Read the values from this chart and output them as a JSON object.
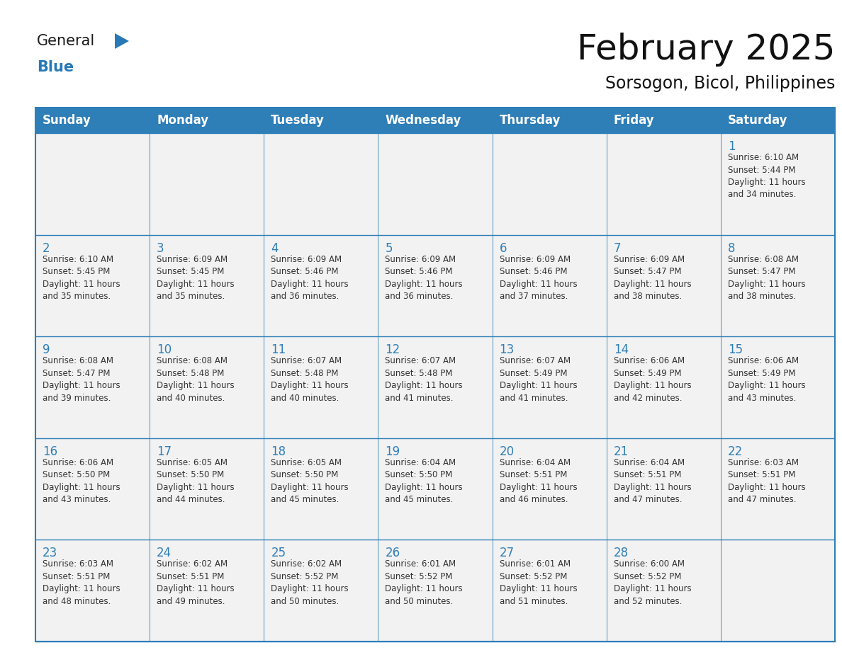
{
  "title": "February 2025",
  "subtitle": "Sorsogon, Bicol, Philippines",
  "header_bg": "#2E7EB8",
  "header_text_color": "#FFFFFF",
  "cell_bg": "#F2F2F2",
  "cell_bg_white": "#FFFFFF",
  "cell_border_color": "#2E7EB8",
  "day_number_color": "#2E7EB8",
  "cell_text_color": "#333333",
  "days_of_week": [
    "Sunday",
    "Monday",
    "Tuesday",
    "Wednesday",
    "Thursday",
    "Friday",
    "Saturday"
  ],
  "weeks": [
    [
      {
        "day": null,
        "info": null
      },
      {
        "day": null,
        "info": null
      },
      {
        "day": null,
        "info": null
      },
      {
        "day": null,
        "info": null
      },
      {
        "day": null,
        "info": null
      },
      {
        "day": null,
        "info": null
      },
      {
        "day": 1,
        "info": "Sunrise: 6:10 AM\nSunset: 5:44 PM\nDaylight: 11 hours\nand 34 minutes."
      }
    ],
    [
      {
        "day": 2,
        "info": "Sunrise: 6:10 AM\nSunset: 5:45 PM\nDaylight: 11 hours\nand 35 minutes."
      },
      {
        "day": 3,
        "info": "Sunrise: 6:09 AM\nSunset: 5:45 PM\nDaylight: 11 hours\nand 35 minutes."
      },
      {
        "day": 4,
        "info": "Sunrise: 6:09 AM\nSunset: 5:46 PM\nDaylight: 11 hours\nand 36 minutes."
      },
      {
        "day": 5,
        "info": "Sunrise: 6:09 AM\nSunset: 5:46 PM\nDaylight: 11 hours\nand 36 minutes."
      },
      {
        "day": 6,
        "info": "Sunrise: 6:09 AM\nSunset: 5:46 PM\nDaylight: 11 hours\nand 37 minutes."
      },
      {
        "day": 7,
        "info": "Sunrise: 6:09 AM\nSunset: 5:47 PM\nDaylight: 11 hours\nand 38 minutes."
      },
      {
        "day": 8,
        "info": "Sunrise: 6:08 AM\nSunset: 5:47 PM\nDaylight: 11 hours\nand 38 minutes."
      }
    ],
    [
      {
        "day": 9,
        "info": "Sunrise: 6:08 AM\nSunset: 5:47 PM\nDaylight: 11 hours\nand 39 minutes."
      },
      {
        "day": 10,
        "info": "Sunrise: 6:08 AM\nSunset: 5:48 PM\nDaylight: 11 hours\nand 40 minutes."
      },
      {
        "day": 11,
        "info": "Sunrise: 6:07 AM\nSunset: 5:48 PM\nDaylight: 11 hours\nand 40 minutes."
      },
      {
        "day": 12,
        "info": "Sunrise: 6:07 AM\nSunset: 5:48 PM\nDaylight: 11 hours\nand 41 minutes."
      },
      {
        "day": 13,
        "info": "Sunrise: 6:07 AM\nSunset: 5:49 PM\nDaylight: 11 hours\nand 41 minutes."
      },
      {
        "day": 14,
        "info": "Sunrise: 6:06 AM\nSunset: 5:49 PM\nDaylight: 11 hours\nand 42 minutes."
      },
      {
        "day": 15,
        "info": "Sunrise: 6:06 AM\nSunset: 5:49 PM\nDaylight: 11 hours\nand 43 minutes."
      }
    ],
    [
      {
        "day": 16,
        "info": "Sunrise: 6:06 AM\nSunset: 5:50 PM\nDaylight: 11 hours\nand 43 minutes."
      },
      {
        "day": 17,
        "info": "Sunrise: 6:05 AM\nSunset: 5:50 PM\nDaylight: 11 hours\nand 44 minutes."
      },
      {
        "day": 18,
        "info": "Sunrise: 6:05 AM\nSunset: 5:50 PM\nDaylight: 11 hours\nand 45 minutes."
      },
      {
        "day": 19,
        "info": "Sunrise: 6:04 AM\nSunset: 5:50 PM\nDaylight: 11 hours\nand 45 minutes."
      },
      {
        "day": 20,
        "info": "Sunrise: 6:04 AM\nSunset: 5:51 PM\nDaylight: 11 hours\nand 46 minutes."
      },
      {
        "day": 21,
        "info": "Sunrise: 6:04 AM\nSunset: 5:51 PM\nDaylight: 11 hours\nand 47 minutes."
      },
      {
        "day": 22,
        "info": "Sunrise: 6:03 AM\nSunset: 5:51 PM\nDaylight: 11 hours\nand 47 minutes."
      }
    ],
    [
      {
        "day": 23,
        "info": "Sunrise: 6:03 AM\nSunset: 5:51 PM\nDaylight: 11 hours\nand 48 minutes."
      },
      {
        "day": 24,
        "info": "Sunrise: 6:02 AM\nSunset: 5:51 PM\nDaylight: 11 hours\nand 49 minutes."
      },
      {
        "day": 25,
        "info": "Sunrise: 6:02 AM\nSunset: 5:52 PM\nDaylight: 11 hours\nand 50 minutes."
      },
      {
        "day": 26,
        "info": "Sunrise: 6:01 AM\nSunset: 5:52 PM\nDaylight: 11 hours\nand 50 minutes."
      },
      {
        "day": 27,
        "info": "Sunrise: 6:01 AM\nSunset: 5:52 PM\nDaylight: 11 hours\nand 51 minutes."
      },
      {
        "day": 28,
        "info": "Sunrise: 6:00 AM\nSunset: 5:52 PM\nDaylight: 11 hours\nand 52 minutes."
      },
      {
        "day": null,
        "info": null
      }
    ]
  ],
  "logo_general_color": "#1a1a1a",
  "logo_blue_color": "#2779B8",
  "title_fontsize": 36,
  "subtitle_fontsize": 17,
  "header_fontsize": 12,
  "day_num_fontsize": 12,
  "cell_text_fontsize": 8.5
}
